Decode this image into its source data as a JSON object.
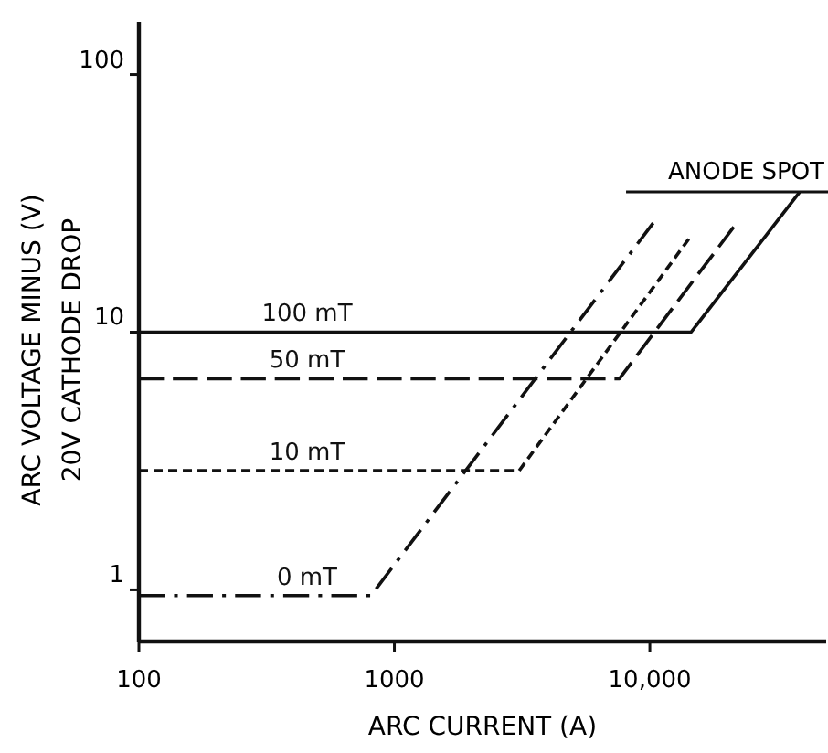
{
  "chart_data": {
    "type": "line",
    "xlabel": "ARC CURRENT  (A)",
    "ylabel": "ARC VOLTAGE MINUS   (V)\n20V CATHODE DROP",
    "log": "xy",
    "xlim": [
      100,
      49000
    ],
    "ylim": [
      0.63,
      160
    ],
    "xticks": [
      100,
      1000,
      {
        "value": 10000,
        "label": "10,000"
      }
    ],
    "yticks": [
      1,
      10,
      100
    ],
    "series": [
      {
        "name": "100 mT",
        "color": "#111111",
        "line_style": "solid",
        "x": [
          100,
          14500,
          38600
        ],
        "values": [
          10,
          10,
          35
        ]
      },
      {
        "name": "50 mT",
        "color": "#111111",
        "line_style": "dashed",
        "x": [
          100,
          7600,
          21300
        ],
        "values": [
          6.6,
          6.6,
          25.6
        ]
      },
      {
        "name": "10 mT",
        "color": "#111111",
        "line_style": "dotted",
        "x": [
          100,
          3080,
          14200
        ],
        "values": [
          2.9,
          2.9,
          23
        ]
      },
      {
        "name": "0 mT",
        "color": "#111111",
        "line_style": "dashdot",
        "x": [
          100,
          810,
          10300
        ],
        "values": [
          0.95,
          0.95,
          26.5
        ]
      }
    ],
    "annotations": [
      {
        "text": "ANODE SPOT",
        "x": 38600,
        "y": 35
      }
    ]
  }
}
